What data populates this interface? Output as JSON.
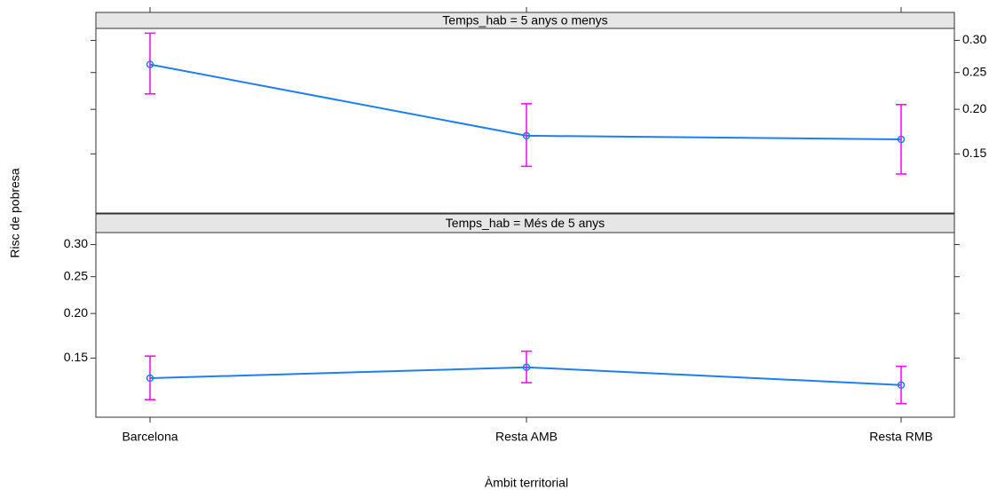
{
  "chart_data": {
    "type": "line",
    "y_label": "Risc de pobresa",
    "x_label": "Àmbit territorial",
    "categories": [
      "Barcelona",
      "Resta AMB",
      "Resta RMB"
    ],
    "yscale": "logit",
    "ylim": [
      0.1,
      0.32
    ],
    "yticks": [
      0.15,
      {
        "value": 0.2,
        "label": "0.20"
      },
      0.25,
      {
        "value": 0.3,
        "label": "0.30"
      }
    ],
    "line_color": "#1f7fef",
    "error_color": "#ff00ff",
    "panels": [
      {
        "strip": "Temps_hab = 5 anys o menys",
        "values": [
          0.262,
          0.169,
          0.165
        ],
        "lower": [
          0.22,
          0.138,
          0.131
        ],
        "upper": [
          0.312,
          0.207,
          0.206
        ]
      },
      {
        "strip": "Temps_hab = Més de 5 anys",
        "values": [
          0.131,
          0.141,
          0.125
        ],
        "lower": [
          0.113,
          0.127,
          0.11
        ],
        "upper": [
          0.152,
          0.157,
          0.142
        ]
      }
    ]
  }
}
